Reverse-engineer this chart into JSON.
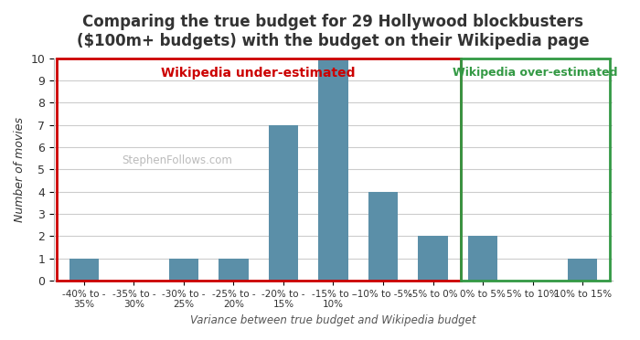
{
  "title": "Comparing the true budget for 29 Hollywood blockbusters\n($100m+ budgets) with the budget on their Wikipedia page",
  "xlabel": "Variance between true budget and Wikipedia budget",
  "ylabel": "Number of movies",
  "categories": [
    "-40% to -\n35%",
    "-35% to -\n30%",
    "-30% to -\n25%",
    "-25% to -\n20%",
    "-20% to -\n15%",
    "-15% to -\n10%",
    "-10% to -5%",
    "-5% to 0%",
    "0% to 5%",
    "5% to 10%",
    "10% to 15%"
  ],
  "values": [
    1,
    0,
    1,
    1,
    7,
    10,
    4,
    2,
    2,
    0,
    1
  ],
  "bar_color": "#5b8fa8",
  "background_color": "#ffffff",
  "watermark": "StephenFollows.com",
  "under_label": "Wikipedia under-estimated",
  "over_label": "Wikipedia over-estimated",
  "under_color": "#cc0000",
  "over_color": "#339944",
  "ylim": [
    0,
    10
  ],
  "yticks": [
    0,
    1,
    2,
    3,
    4,
    5,
    6,
    7,
    8,
    9,
    10
  ],
  "title_fontsize": 12,
  "ylabel_fontsize": 9,
  "xlabel_fontsize": 8.5,
  "tick_fontsize": 7.5
}
